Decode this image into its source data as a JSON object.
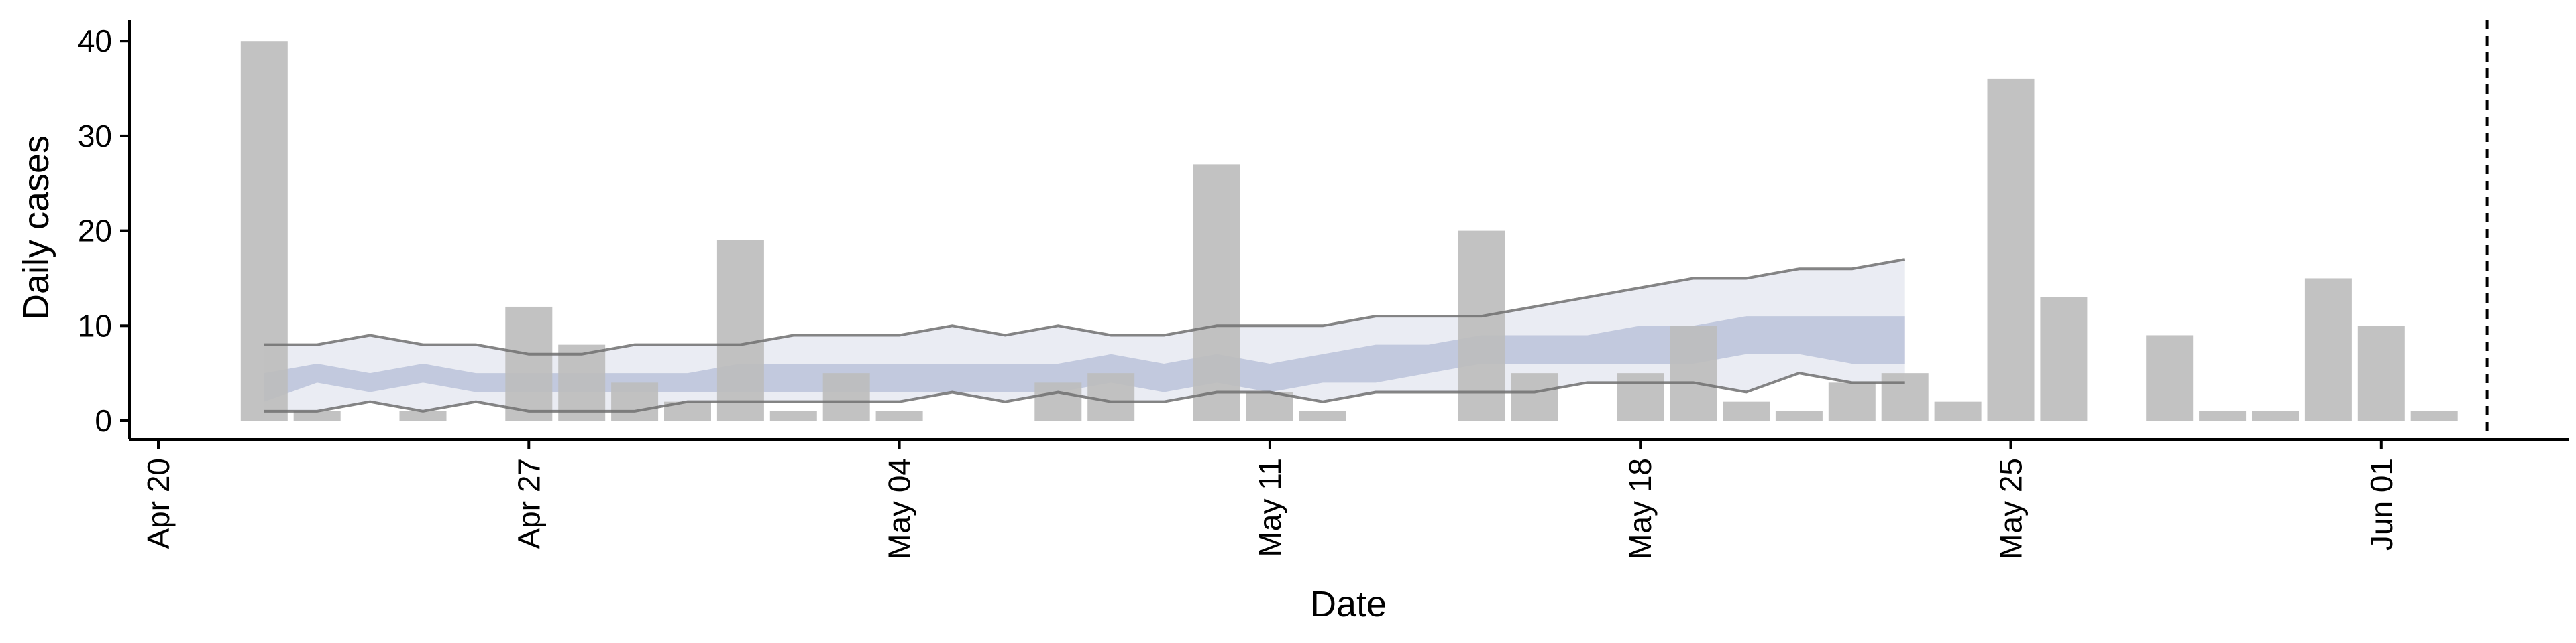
{
  "chart_data": {
    "type": "bar",
    "title": "",
    "xlabel": "Date",
    "ylabel": "Daily cases",
    "x_ticks": [
      "Apr 20",
      "Apr 27",
      "May 04",
      "May 11",
      "May 18",
      "May 25",
      "Jun 01"
    ],
    "y_ticks": [
      "0",
      "10",
      "20",
      "30",
      "40"
    ],
    "xlim": [
      "2020-04-20",
      "2020-06-05"
    ],
    "ylim": [
      0,
      42
    ],
    "grid": false,
    "legend": "none",
    "bars": {
      "color": "#bdbdbd",
      "dates": [
        "2020-04-22",
        "2020-04-23",
        "2020-04-25",
        "2020-04-27",
        "2020-04-28",
        "2020-04-29",
        "2020-04-30",
        "2020-05-01",
        "2020-05-02",
        "2020-05-03",
        "2020-05-04",
        "2020-05-07",
        "2020-05-08",
        "2020-05-10",
        "2020-05-11",
        "2020-05-12",
        "2020-05-15",
        "2020-05-16",
        "2020-05-18",
        "2020-05-19",
        "2020-05-20",
        "2020-05-21",
        "2020-05-22",
        "2020-05-23",
        "2020-05-24",
        "2020-05-25",
        "2020-05-26",
        "2020-05-28",
        "2020-05-29",
        "2020-05-30",
        "2020-05-31",
        "2020-06-01",
        "2020-06-02"
      ],
      "values": [
        40,
        1,
        1,
        12,
        8,
        4,
        2,
        19,
        1,
        5,
        1,
        4,
        5,
        27,
        3,
        1,
        20,
        5,
        5,
        10,
        2,
        1,
        4,
        5,
        2,
        36,
        13,
        9,
        1,
        1,
        15,
        10,
        1
      ]
    },
    "forecast": {
      "dates": [
        "2020-04-22",
        "2020-04-23",
        "2020-04-24",
        "2020-04-25",
        "2020-04-26",
        "2020-04-27",
        "2020-04-28",
        "2020-04-29",
        "2020-04-30",
        "2020-05-01",
        "2020-05-02",
        "2020-05-03",
        "2020-05-04",
        "2020-05-05",
        "2020-05-06",
        "2020-05-07",
        "2020-05-08",
        "2020-05-09",
        "2020-05-10",
        "2020-05-11",
        "2020-05-12",
        "2020-05-13",
        "2020-05-14",
        "2020-05-15",
        "2020-05-16",
        "2020-05-17",
        "2020-05-18",
        "2020-05-19",
        "2020-05-20",
        "2020-05-21",
        "2020-05-22",
        "2020-05-23"
      ],
      "outer_upper": [
        8,
        8,
        9,
        8,
        8,
        7,
        7,
        8,
        8,
        8,
        9,
        9,
        9,
        10,
        9,
        10,
        9,
        9,
        10,
        10,
        10,
        11,
        11,
        11,
        12,
        13,
        14,
        15,
        15,
        16,
        16,
        17
      ],
      "outer_lower": [
        1,
        1,
        2,
        1,
        2,
        1,
        1,
        1,
        2,
        2,
        2,
        2,
        2,
        3,
        2,
        3,
        2,
        2,
        3,
        3,
        2,
        3,
        3,
        3,
        3,
        4,
        4,
        4,
        3,
        5,
        4,
        4
      ],
      "inner_upper": [
        5,
        6,
        5,
        6,
        5,
        5,
        5,
        5,
        5,
        6,
        6,
        6,
        6,
        6,
        6,
        6,
        7,
        6,
        7,
        6,
        7,
        8,
        8,
        9,
        9,
        9,
        10,
        10,
        11,
        11,
        11,
        11
      ],
      "inner_lower": [
        2,
        4,
        3,
        4,
        3,
        3,
        3,
        3,
        3,
        3,
        3,
        3,
        3,
        3,
        3,
        3,
        4,
        3,
        4,
        3,
        4,
        4,
        5,
        6,
        6,
        6,
        6,
        6,
        7,
        7,
        6,
        6
      ],
      "inner_band_color": "#b8c1d8",
      "outer_band_color": "#e6e9f1",
      "bound_line_color": "#707070"
    },
    "vline": {
      "date": "2020-06-03",
      "style": "dashed",
      "color": "#000000"
    }
  }
}
